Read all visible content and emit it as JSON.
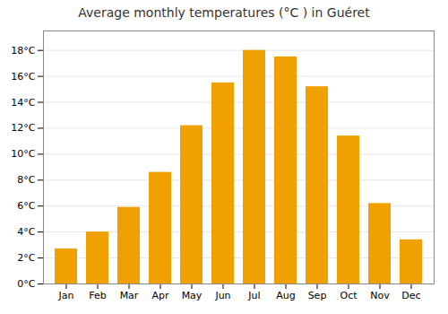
{
  "chart_data": {
    "type": "bar",
    "title": "Average monthly temperatures (°C ) in Guéret",
    "categories": [
      "Jan",
      "Feb",
      "Mar",
      "Apr",
      "May",
      "Jun",
      "Jul",
      "Aug",
      "Sep",
      "Oct",
      "Nov",
      "Dec"
    ],
    "values": [
      2.7,
      4.0,
      5.9,
      8.6,
      12.2,
      15.5,
      18.0,
      17.5,
      15.2,
      11.4,
      6.2,
      3.4
    ],
    "color": "#F0A000",
    "ylim": [
      0,
      19.5
    ],
    "yticks": [
      {
        "value": 0,
        "label": "0°C"
      },
      {
        "value": 2,
        "label": "2°C"
      },
      {
        "value": 4,
        "label": "4°C"
      },
      {
        "value": 6,
        "label": "6°C"
      },
      {
        "value": 8,
        "label": "8°C"
      },
      {
        "value": 10,
        "label": "10°C"
      },
      {
        "value": 12,
        "label": "12°C"
      },
      {
        "value": 14,
        "label": "14°C"
      },
      {
        "value": 16,
        "label": "16°C"
      },
      {
        "value": 18,
        "label": "18°C"
      }
    ],
    "grid": true
  }
}
